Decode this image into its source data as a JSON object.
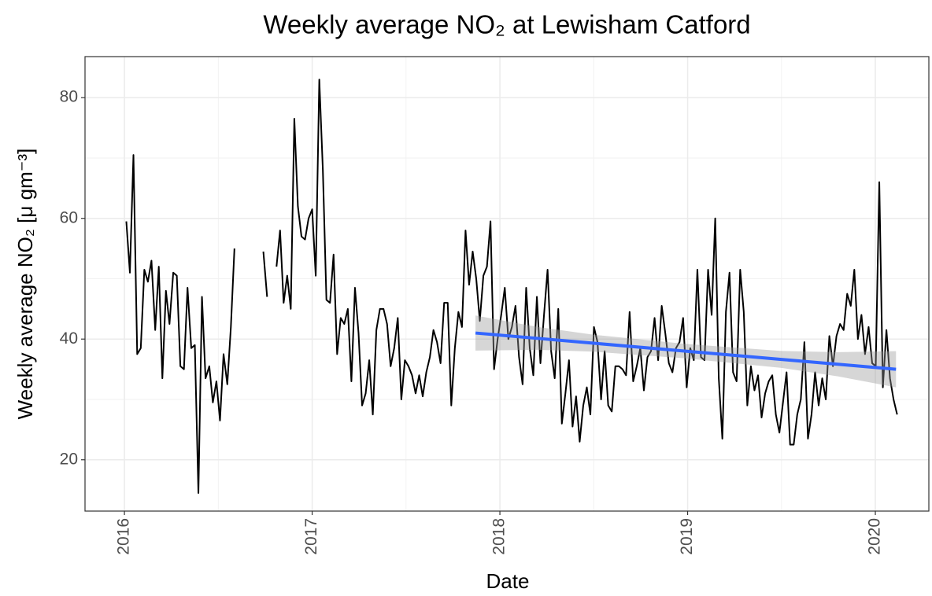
{
  "chart_data": {
    "type": "line",
    "title": "Weekly average NO₂ at Lewisham Catford",
    "x_label": "Date",
    "y_label": "Weekly average NO₂ [μ gm⁻³]",
    "xlim": [
      2015.79,
      2020.285
    ],
    "ylim": [
      11.5,
      86.8
    ],
    "xticks": [
      2016,
      2017,
      2018,
      2019,
      2020
    ],
    "yticks": [
      20,
      40,
      60,
      80
    ],
    "grid": true,
    "series": [
      {
        "color": "#000000",
        "x": [
          2016.01,
          2016.029,
          2016.048,
          2016.068,
          2016.087,
          2016.106,
          2016.125,
          2016.144,
          2016.164,
          2016.183,
          2016.202,
          2016.221,
          2016.24,
          2016.26,
          2016.279,
          2016.298,
          2016.317,
          2016.336,
          2016.356,
          2016.375,
          2016.394,
          2016.413,
          2016.432,
          2016.452,
          2016.471,
          2016.49,
          2016.509,
          2016.528,
          2016.548,
          2016.567,
          2016.586,
          2016.65,
          2016.74,
          2016.76,
          2016.78,
          2016.81,
          2016.829,
          2016.848,
          2016.867,
          2016.886,
          2016.905,
          2016.924,
          2016.943,
          2016.962,
          2016.981,
          2017.0,
          2017.019,
          2017.038,
          2017.057,
          2017.076,
          2017.095,
          2017.114,
          2017.133,
          2017.152,
          2017.171,
          2017.19,
          2017.209,
          2017.228,
          2017.247,
          2017.266,
          2017.285,
          2017.304,
          2017.323,
          2017.342,
          2017.361,
          2017.38,
          2017.399,
          2017.418,
          2017.437,
          2017.456,
          2017.475,
          2017.494,
          2017.513,
          2017.532,
          2017.551,
          2017.57,
          2017.589,
          2017.608,
          2017.627,
          2017.646,
          2017.665,
          2017.684,
          2017.703,
          2017.722,
          2017.741,
          2017.76,
          2017.779,
          2017.798,
          2017.817,
          2017.836,
          2017.855,
          2017.874,
          2017.893,
          2017.912,
          2017.931,
          2017.95,
          2017.969,
          2017.988,
          2018.007,
          2018.026,
          2018.045,
          2018.064,
          2018.083,
          2018.102,
          2018.121,
          2018.14,
          2018.159,
          2018.178,
          2018.197,
          2018.216,
          2018.235,
          2018.254,
          2018.273,
          2018.292,
          2018.311,
          2018.33,
          2018.349,
          2018.368,
          2018.387,
          2018.406,
          2018.425,
          2018.444,
          2018.463,
          2018.482,
          2018.501,
          2018.52,
          2018.539,
          2018.558,
          2018.577,
          2018.596,
          2018.615,
          2018.634,
          2018.653,
          2018.672,
          2018.691,
          2018.71,
          2018.729,
          2018.748,
          2018.767,
          2018.786,
          2018.805,
          2018.824,
          2018.843,
          2018.862,
          2018.881,
          2018.9,
          2018.919,
          2018.938,
          2018.957,
          2018.976,
          2018.995,
          2019.014,
          2019.033,
          2019.052,
          2019.071,
          2019.09,
          2019.109,
          2019.128,
          2019.147,
          2019.166,
          2019.185,
          2019.204,
          2019.223,
          2019.242,
          2019.261,
          2019.28,
          2019.299,
          2019.318,
          2019.337,
          2019.356,
          2019.375,
          2019.394,
          2019.413,
          2019.432,
          2019.451,
          2019.47,
          2019.489,
          2019.508,
          2019.527,
          2019.546,
          2019.565,
          2019.584,
          2019.603,
          2019.622,
          2019.641,
          2019.66,
          2019.679,
          2019.698,
          2019.717,
          2019.736,
          2019.755,
          2019.774,
          2019.793,
          2019.812,
          2019.831,
          2019.85,
          2019.869,
          2019.888,
          2019.907,
          2019.926,
          2019.945,
          2019.964,
          2019.983,
          2020.002,
          2020.021,
          2020.04,
          2020.059,
          2020.078,
          2020.097,
          2020.116
        ],
        "values": [
          59.5,
          51,
          70.5,
          37.5,
          38.5,
          51.5,
          49.5,
          53,
          41.5,
          52,
          33.5,
          48,
          42.5,
          51,
          50.5,
          35.5,
          35,
          48.5,
          38.5,
          39,
          14.5,
          47,
          33.5,
          35.5,
          29.5,
          33,
          26.5,
          37.5,
          32.5,
          42,
          55,
          null,
          54.5,
          47,
          null,
          52,
          58,
          46,
          50.5,
          45,
          76.5,
          62,
          57,
          56.5,
          60,
          61.5,
          50.5,
          83,
          68,
          46.5,
          46,
          54,
          37.5,
          43.5,
          42.5,
          45,
          33,
          48.5,
          41,
          29,
          31,
          36.5,
          27.5,
          41.5,
          45,
          45,
          42.5,
          35.5,
          38.5,
          43.5,
          30,
          36.5,
          35.5,
          34,
          31,
          34,
          30.5,
          34.5,
          37,
          41.5,
          39.5,
          36,
          46,
          46,
          29,
          38.5,
          44.5,
          42,
          58,
          49,
          54.5,
          50,
          43,
          50.5,
          52,
          59.5,
          35,
          40,
          44,
          48.5,
          40,
          42,
          45.5,
          37,
          32.5,
          48.5,
          38.5,
          34,
          47,
          36,
          44,
          51.5,
          38,
          33.5,
          45,
          26,
          31,
          36.5,
          25.5,
          30.5,
          23,
          29,
          32,
          27.5,
          42,
          39.5,
          30,
          38,
          29,
          28,
          35.5,
          35.5,
          35,
          34,
          44.5,
          33,
          35.5,
          38.5,
          31.5,
          37,
          38,
          43.5,
          36.5,
          45.5,
          41,
          36,
          34.5,
          38.5,
          39.5,
          43.5,
          32,
          38.5,
          36.5,
          51.5,
          37,
          36.5,
          51.5,
          44,
          60,
          33.5,
          23.5,
          44.5,
          51,
          34.5,
          33,
          51.5,
          44.5,
          29,
          35.5,
          31.5,
          34,
          27,
          31,
          33,
          34,
          27.5,
          24.5,
          29.5,
          34.5,
          22.5,
          22.5,
          27.5,
          30,
          39.5,
          23.5,
          27.5,
          34.5,
          29,
          33.5,
          30,
          40.5,
          35.5,
          40.5,
          42.5,
          41.5,
          47.5,
          45.5,
          51.5,
          40,
          44,
          37.5,
          42,
          36,
          35.5,
          66,
          32,
          41.5,
          33.5,
          30,
          27.5
        ]
      }
    ],
    "trend": {
      "color": "#3366ff",
      "band_color": "#999999",
      "x": [
        2017.87,
        2018.2,
        2018.5,
        2018.99,
        2019.5,
        2019.8,
        2020.11
      ],
      "values": [
        41.0,
        40.12,
        39.31,
        38.0,
        36.63,
        35.83,
        35.0
      ],
      "lower": [
        38.1,
        38.22,
        37.91,
        36.8,
        35.23,
        33.83,
        32.0
      ],
      "upper": [
        43.9,
        42.02,
        40.71,
        39.2,
        38.03,
        37.83,
        38.0
      ]
    }
  }
}
